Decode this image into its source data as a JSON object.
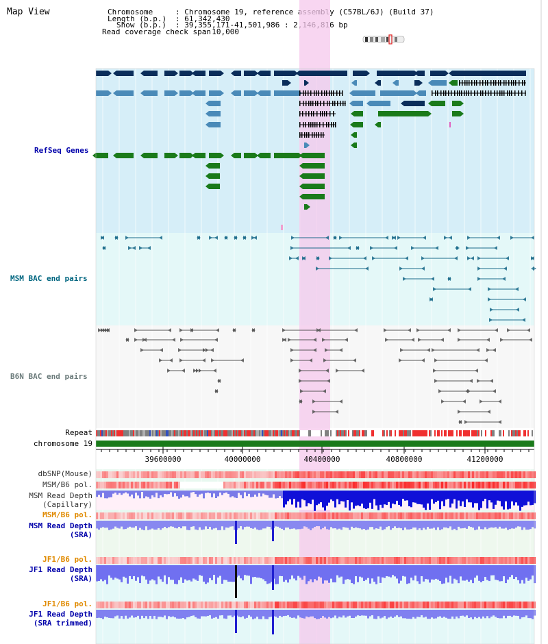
{
  "view_title": "Map View",
  "header": {
    "chromosome_key": "Chromosome",
    "chromosome_val": ": Chromosome 19, reference assembly (C57BL/6J) (Build 37)",
    "length_key": "Length (b.p.)",
    "length_val": ": 61,342,430",
    "show_key": "Show (b.p.)",
    "show_val": ": 39,355,171-41,501,986 : 2,146,816 bp",
    "coverage_key": "Read coverage check span",
    "coverage_val": ": 10,000"
  },
  "tracks": {
    "refseq": "RefSeq Genes",
    "msm_bac": "MSM BAC end pairs",
    "b6n_bac": "B6N BAC end pairs",
    "repeat": "Repeat",
    "chromosome": "chromosome 19",
    "dbsnp": "dbSNP(Mouse)",
    "msm_b6_pol_1": "MSM/B6 pol.",
    "msm_read_cap_1": "MSM Read Depth",
    "msm_read_cap_2": "(Capillary)",
    "msm_b6_pol_2": "MSM/B6 pol.",
    "msm_read_sra_1": "MSM Read Depth",
    "msm_read_sra_2": "(SRA)",
    "jf1_b6_pol_1": "JF1/B6 pol.",
    "jf1_read_sra_1": "JF1 Read Depth",
    "jf1_read_sra_2": "(SRA)",
    "jf1_b6_pol_2": "JF1/B6 pol.",
    "jf1_read_trim_1": "JF1 Read Depth",
    "jf1_read_trim_2": "(SRA trimmed)"
  },
  "ruler": {
    "ticks": [
      "39600000",
      "40000000",
      "40400000",
      "40800000",
      "41200000"
    ]
  },
  "colors": {
    "refseq_bg": "#d6eef8",
    "msm_bg": "#e4f8f8",
    "highlight": "#f6c8ec",
    "dark_navy": "#0a2d5a",
    "steel_blue": "#4a8ab8",
    "green": "#1a7a1a",
    "teal": "#1a6a8a"
  }
}
